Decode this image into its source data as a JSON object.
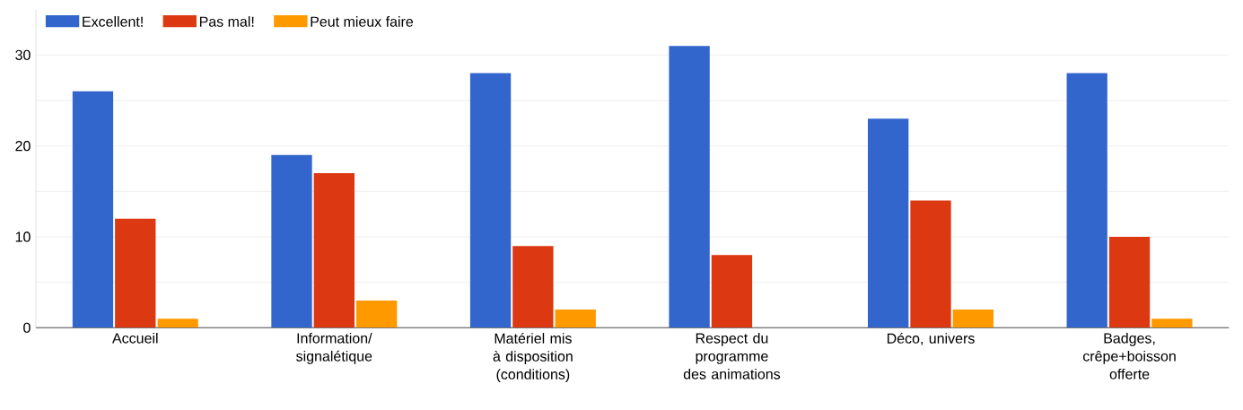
{
  "chart_data": {
    "type": "bar",
    "categories": [
      "Accueil",
      "Information/ signalétique",
      "Matériel mis à disposition (conditions)",
      "Respect du programme des animations",
      "Déco, univers",
      "Badges, crêpe+boisson offerte"
    ],
    "series": [
      {
        "name": "Excellent!",
        "color": "#3366cc",
        "values": [
          26,
          19,
          28,
          31,
          23,
          28
        ]
      },
      {
        "name": "Pas mal!",
        "color": "#dc3912",
        "values": [
          12,
          17,
          9,
          8,
          14,
          10
        ]
      },
      {
        "name": "Peut mieux faire",
        "color": "#ff9900",
        "values": [
          1,
          3,
          2,
          0,
          2,
          1
        ]
      }
    ],
    "ylim": [
      0,
      35
    ],
    "yticks": [
      0,
      {
        "value": 5,
        "label": null
      },
      10,
      {
        "value": 15,
        "label": null
      },
      20,
      {
        "value": 25,
        "label": null
      },
      30
    ],
    "grid": "y",
    "legend": "top left"
  }
}
